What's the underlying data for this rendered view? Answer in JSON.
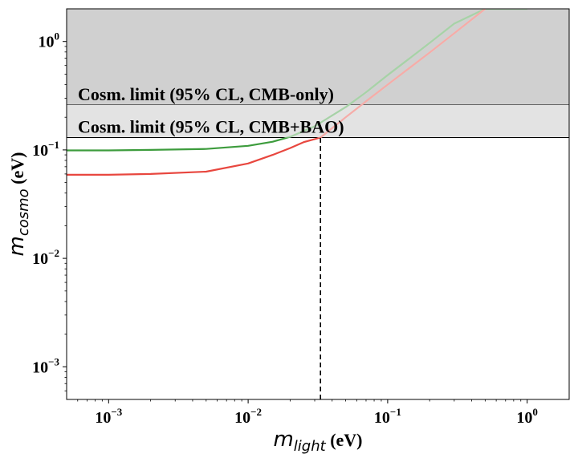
{
  "chart_data": {
    "type": "line",
    "xscale": "log",
    "yscale": "log",
    "xlim": [
      0.0005,
      2.0
    ],
    "ylim": [
      0.0005,
      2.0
    ],
    "xlabel": {
      "var": "m",
      "sub": "light",
      "unit": " (eV)"
    },
    "ylabel": {
      "var": "m",
      "sub": "cosmo",
      "unit": " (eV)"
    },
    "xticks": [
      {
        "value": 0.001,
        "base": "10",
        "exp": "−3"
      },
      {
        "value": 0.01,
        "base": "10",
        "exp": "−2"
      },
      {
        "value": 0.1,
        "base": "10",
        "exp": "−1"
      },
      {
        "value": 1.0,
        "base": "10",
        "exp": "0"
      }
    ],
    "yticks": [
      {
        "value": 0.001,
        "base": "10",
        "exp": "−3"
      },
      {
        "value": 0.01,
        "base": "10",
        "exp": "−2"
      },
      {
        "value": 0.1,
        "base": "10",
        "exp": "−1"
      },
      {
        "value": 1.0,
        "base": "10",
        "exp": "0"
      }
    ],
    "bands": [
      {
        "label": "Cosm. limit (95% CL, CMB-only)",
        "ymin": 0.26,
        "ymax": 2.0,
        "color": "#d0d0d0"
      },
      {
        "label": "Cosm. limit (95% CL, CMB+BAO)",
        "ymin": 0.13,
        "ymax": 0.26,
        "color": "#e3e3e3"
      }
    ],
    "series": [
      {
        "color": "#3d9c3d",
        "x": [
          0.0005,
          0.001,
          0.002,
          0.005,
          0.01,
          0.015,
          0.02,
          0.03,
          0.05,
          0.07,
          0.1,
          0.2,
          0.3,
          0.5,
          0.7,
          1.0
        ],
        "y": [
          0.099,
          0.099,
          0.1,
          0.102,
          0.109,
          0.119,
          0.132,
          0.165,
          0.248,
          0.34,
          0.488,
          0.97,
          1.46,
          2.0,
          2.0,
          2.0
        ]
      },
      {
        "color": "#e8473f",
        "x": [
          0.0005,
          0.001,
          0.002,
          0.005,
          0.01,
          0.015,
          0.02,
          0.025,
          0.033,
          0.05,
          0.07,
          0.1,
          0.2,
          0.3,
          0.5
        ],
        "y": [
          0.059,
          0.059,
          0.06,
          0.063,
          0.075,
          0.09,
          0.104,
          0.118,
          0.13,
          0.2,
          0.28,
          0.4,
          0.79,
          1.19,
          2.0
        ]
      }
    ],
    "vline": {
      "x": 0.033,
      "ymin": 0.0005,
      "ymax": 0.13,
      "style": "dashed",
      "color": "#000000"
    },
    "grid": false
  }
}
